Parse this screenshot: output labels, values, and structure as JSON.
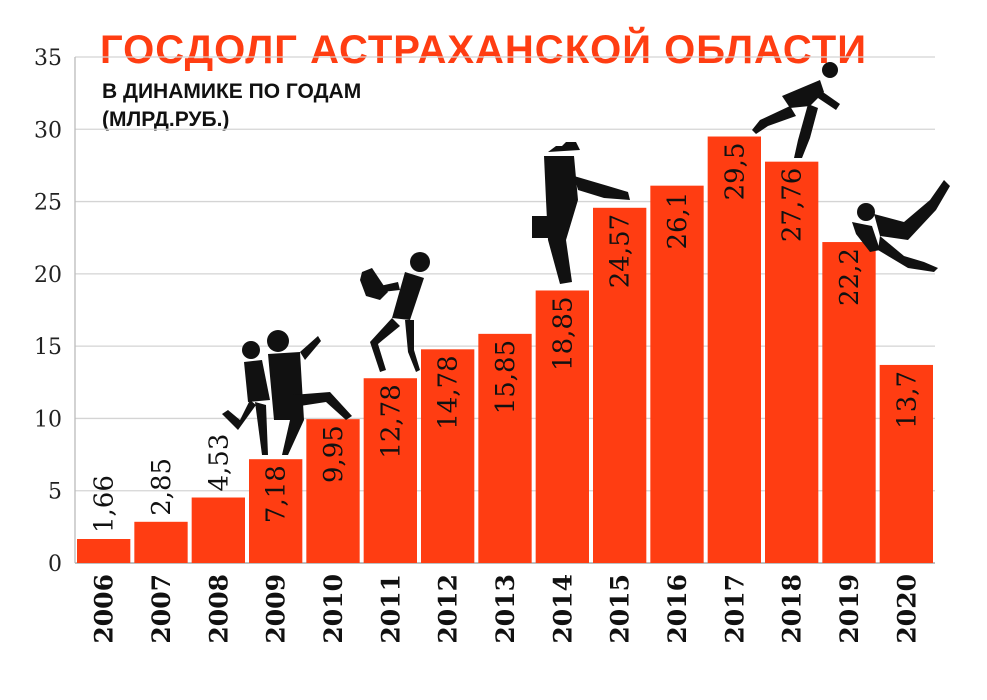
{
  "chart_data": {
    "type": "bar",
    "title": "ГОСДОЛГ АСТРАХАНСКОЙ ОБЛАСТИ",
    "subtitle_line1": "В ДИНАМИКЕ ПО ГОДАМ",
    "subtitle_line2": "(МЛРД.РУБ.)",
    "categories": [
      "2006",
      "2007",
      "2008",
      "2009",
      "2010",
      "2011",
      "2012",
      "2013",
      "2014",
      "2015",
      "2016",
      "2017",
      "2018",
      "2019",
      "2020"
    ],
    "values": [
      1.66,
      2.85,
      4.53,
      7.18,
      9.95,
      12.78,
      14.78,
      15.85,
      18.85,
      24.57,
      26.1,
      29.5,
      27.76,
      22.2,
      13.7
    ],
    "value_labels": [
      "1,66",
      "2,85",
      "4,53",
      "7,18",
      "9,95",
      "12,78",
      "14,78",
      "15,85",
      "18,85",
      "24,57",
      "26,1",
      "29,5",
      "27,76",
      "22,2",
      "13,7"
    ],
    "yticks": [
      "0",
      "5",
      "10",
      "15",
      "20",
      "25",
      "30",
      "35"
    ],
    "ylim": [
      0,
      35
    ],
    "grid": true,
    "bar_color": "#ff3d12",
    "xlabel": "",
    "ylabel": ""
  }
}
